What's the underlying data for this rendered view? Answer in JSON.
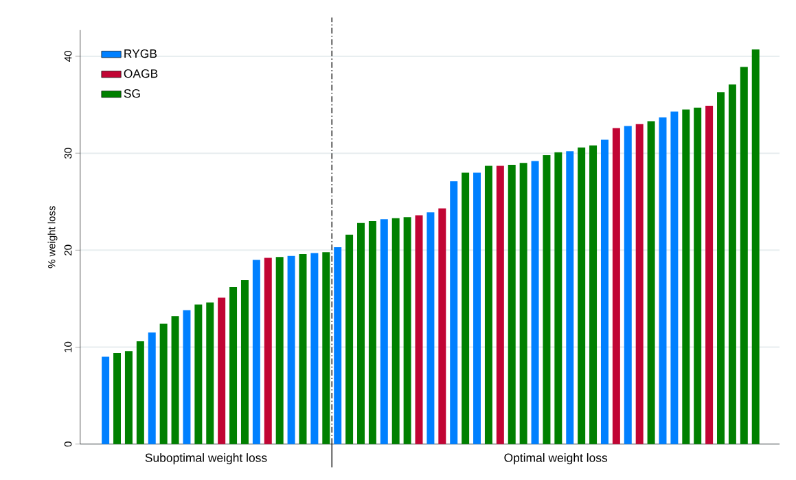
{
  "chart_data": {
    "type": "bar",
    "ylabel": "% weight loss",
    "categories": [
      null,
      null,
      null,
      null,
      null,
      null,
      null,
      null,
      null,
      null,
      null,
      null,
      null,
      null,
      null,
      null,
      null,
      null,
      null,
      null,
      null,
      null,
      null,
      null,
      null,
      null,
      null,
      null,
      null,
      null,
      null,
      null,
      null,
      null,
      null,
      null,
      null,
      null,
      null,
      null,
      null,
      null,
      null,
      null,
      null,
      null,
      null,
      null,
      null,
      null,
      null,
      null,
      null,
      null,
      null,
      null,
      null
    ],
    "series": [
      {
        "name": "RYGB",
        "color": "#0080ff",
        "values": [
          9.0,
          null,
          null,
          null,
          11.5,
          null,
          null,
          13.8,
          null,
          null,
          null,
          null,
          null,
          19.0,
          null,
          null,
          19.4,
          null,
          19.7,
          null,
          20.3,
          null,
          null,
          null,
          23.2,
          null,
          null,
          null,
          23.9,
          null,
          27.1,
          null,
          28.0,
          null,
          null,
          null,
          null,
          29.2,
          null,
          null,
          30.2,
          null,
          null,
          31.4,
          null,
          32.8,
          null,
          null,
          33.7,
          34.3,
          null,
          null,
          null,
          null,
          null,
          null,
          null
        ]
      },
      {
        "name": "OAGB",
        "color": "#c10534",
        "values": [
          null,
          null,
          null,
          null,
          null,
          null,
          null,
          null,
          null,
          null,
          15.1,
          null,
          null,
          null,
          19.2,
          null,
          null,
          null,
          null,
          null,
          null,
          null,
          null,
          null,
          null,
          null,
          null,
          23.6,
          null,
          24.3,
          null,
          null,
          null,
          null,
          28.7,
          null,
          null,
          null,
          null,
          null,
          null,
          null,
          null,
          null,
          32.6,
          null,
          33.0,
          null,
          null,
          null,
          null,
          null,
          34.9,
          null,
          null,
          null,
          null
        ]
      },
      {
        "name": "SG",
        "color": "#008000",
        "values": [
          null,
          9.4,
          9.6,
          10.6,
          null,
          12.4,
          13.2,
          null,
          14.4,
          14.6,
          null,
          16.2,
          16.9,
          null,
          null,
          19.3,
          null,
          19.6,
          null,
          19.8,
          null,
          21.6,
          22.8,
          23.0,
          null,
          23.3,
          23.4,
          null,
          null,
          null,
          null,
          28.0,
          null,
          28.7,
          null,
          28.8,
          29.0,
          null,
          29.8,
          30.1,
          null,
          30.6,
          30.8,
          null,
          null,
          null,
          null,
          33.3,
          null,
          null,
          34.5,
          34.7,
          null,
          36.3,
          37.1,
          38.9,
          40.7
        ]
      }
    ],
    "ylim": [
      0,
      42.7
    ],
    "yticks": [
      0,
      10,
      20,
      30,
      40
    ],
    "grid": "y",
    "legend": "top left",
    "stacked": true,
    "annotations": [
      "Suboptimal weight loss",
      "Optimal weight loss"
    ]
  }
}
